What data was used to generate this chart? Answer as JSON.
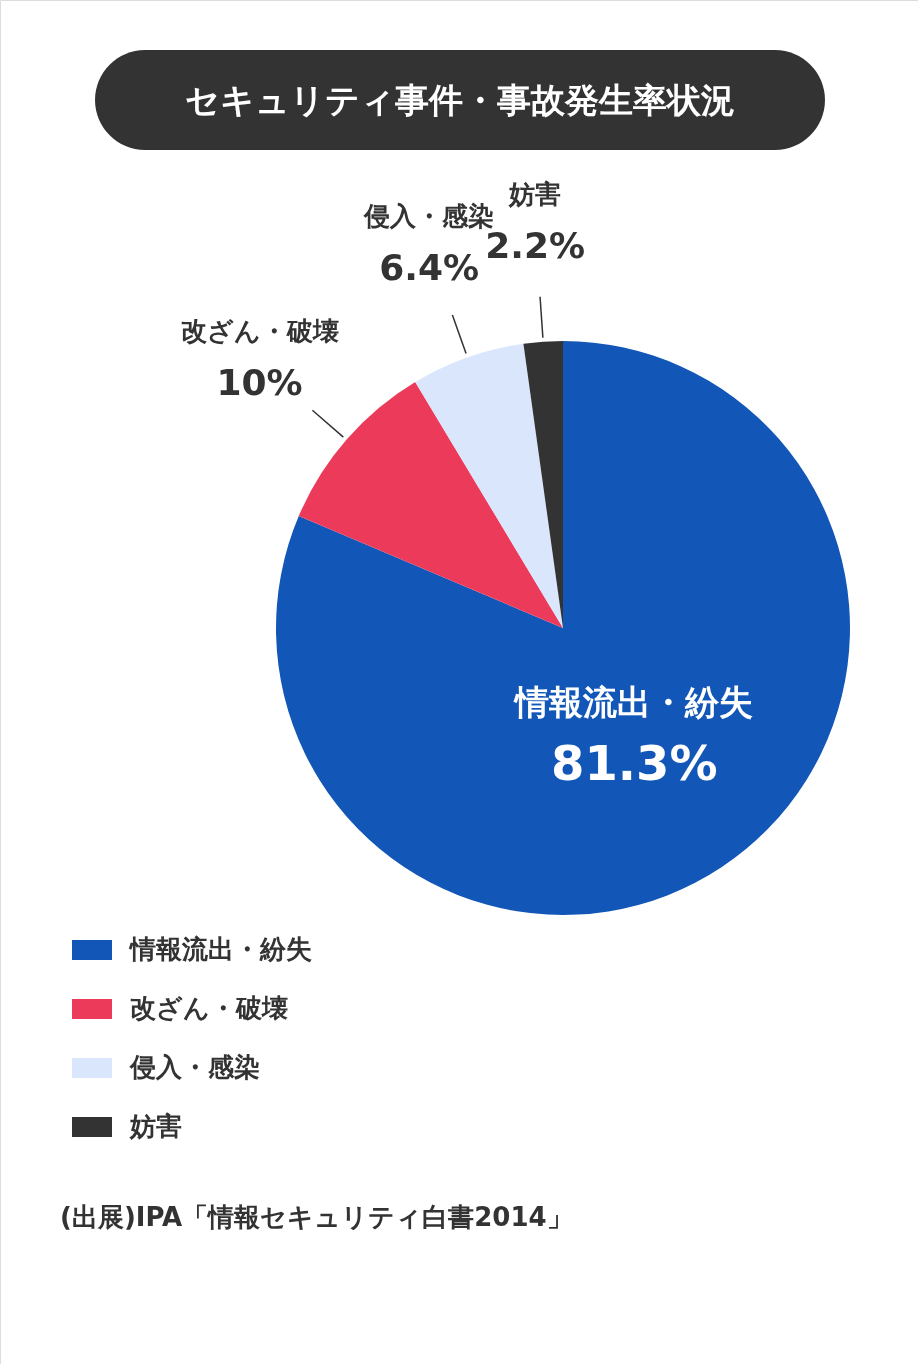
{
  "chart_data": {
    "type": "pie",
    "title": "セキュリティ事件・事故発生率状況",
    "categories": [
      "情報流出・紛失",
      "改ざん・破壊",
      "侵入・感染",
      "妨害"
    ],
    "values": [
      81.3,
      10,
      6.4,
      2.2
    ],
    "colors": [
      "#1257b7",
      "#ec3b5a",
      "#d9e6fb",
      "#333333"
    ],
    "value_labels": [
      "81.3%",
      "10%",
      "6.4%",
      "2.2%"
    ],
    "legend": "bottom left",
    "annotations": [
      "(出展)IPA「情報セキュリティ白書2014」"
    ]
  }
}
